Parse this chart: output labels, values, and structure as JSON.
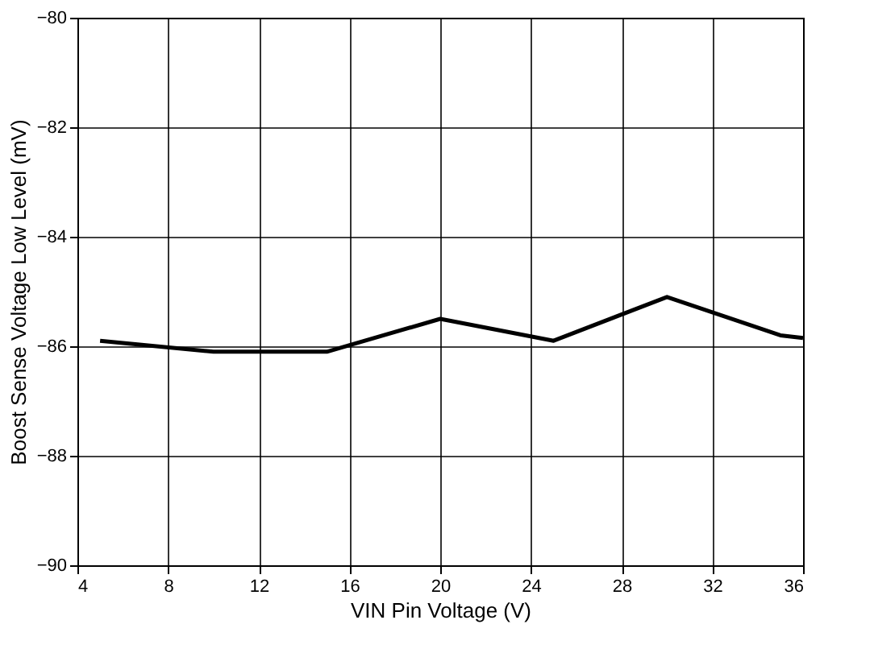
{
  "chart_data": {
    "type": "line",
    "xlabel": "VIN Pin Voltage (V)",
    "ylabel": "Boost Sense Voltage Low Level (mV)",
    "x": [
      5,
      10,
      15,
      20,
      25,
      30,
      35,
      36
    ],
    "series": [
      {
        "color": "#000000",
        "values": [
          -85.9,
          -86.1,
          -86.1,
          -85.5,
          -85.9,
          -85.1,
          -85.8,
          -85.85
        ]
      }
    ],
    "xlim": [
      4,
      36
    ],
    "xticks": [
      4,
      8,
      12,
      16,
      20,
      24,
      28,
      32,
      36
    ],
    "ylim": [
      -90,
      -80
    ],
    "yticks": [
      -90,
      -88,
      -86,
      -84,
      -82,
      -80
    ],
    "grid": true,
    "marker": "none",
    "line_style": "solid"
  }
}
